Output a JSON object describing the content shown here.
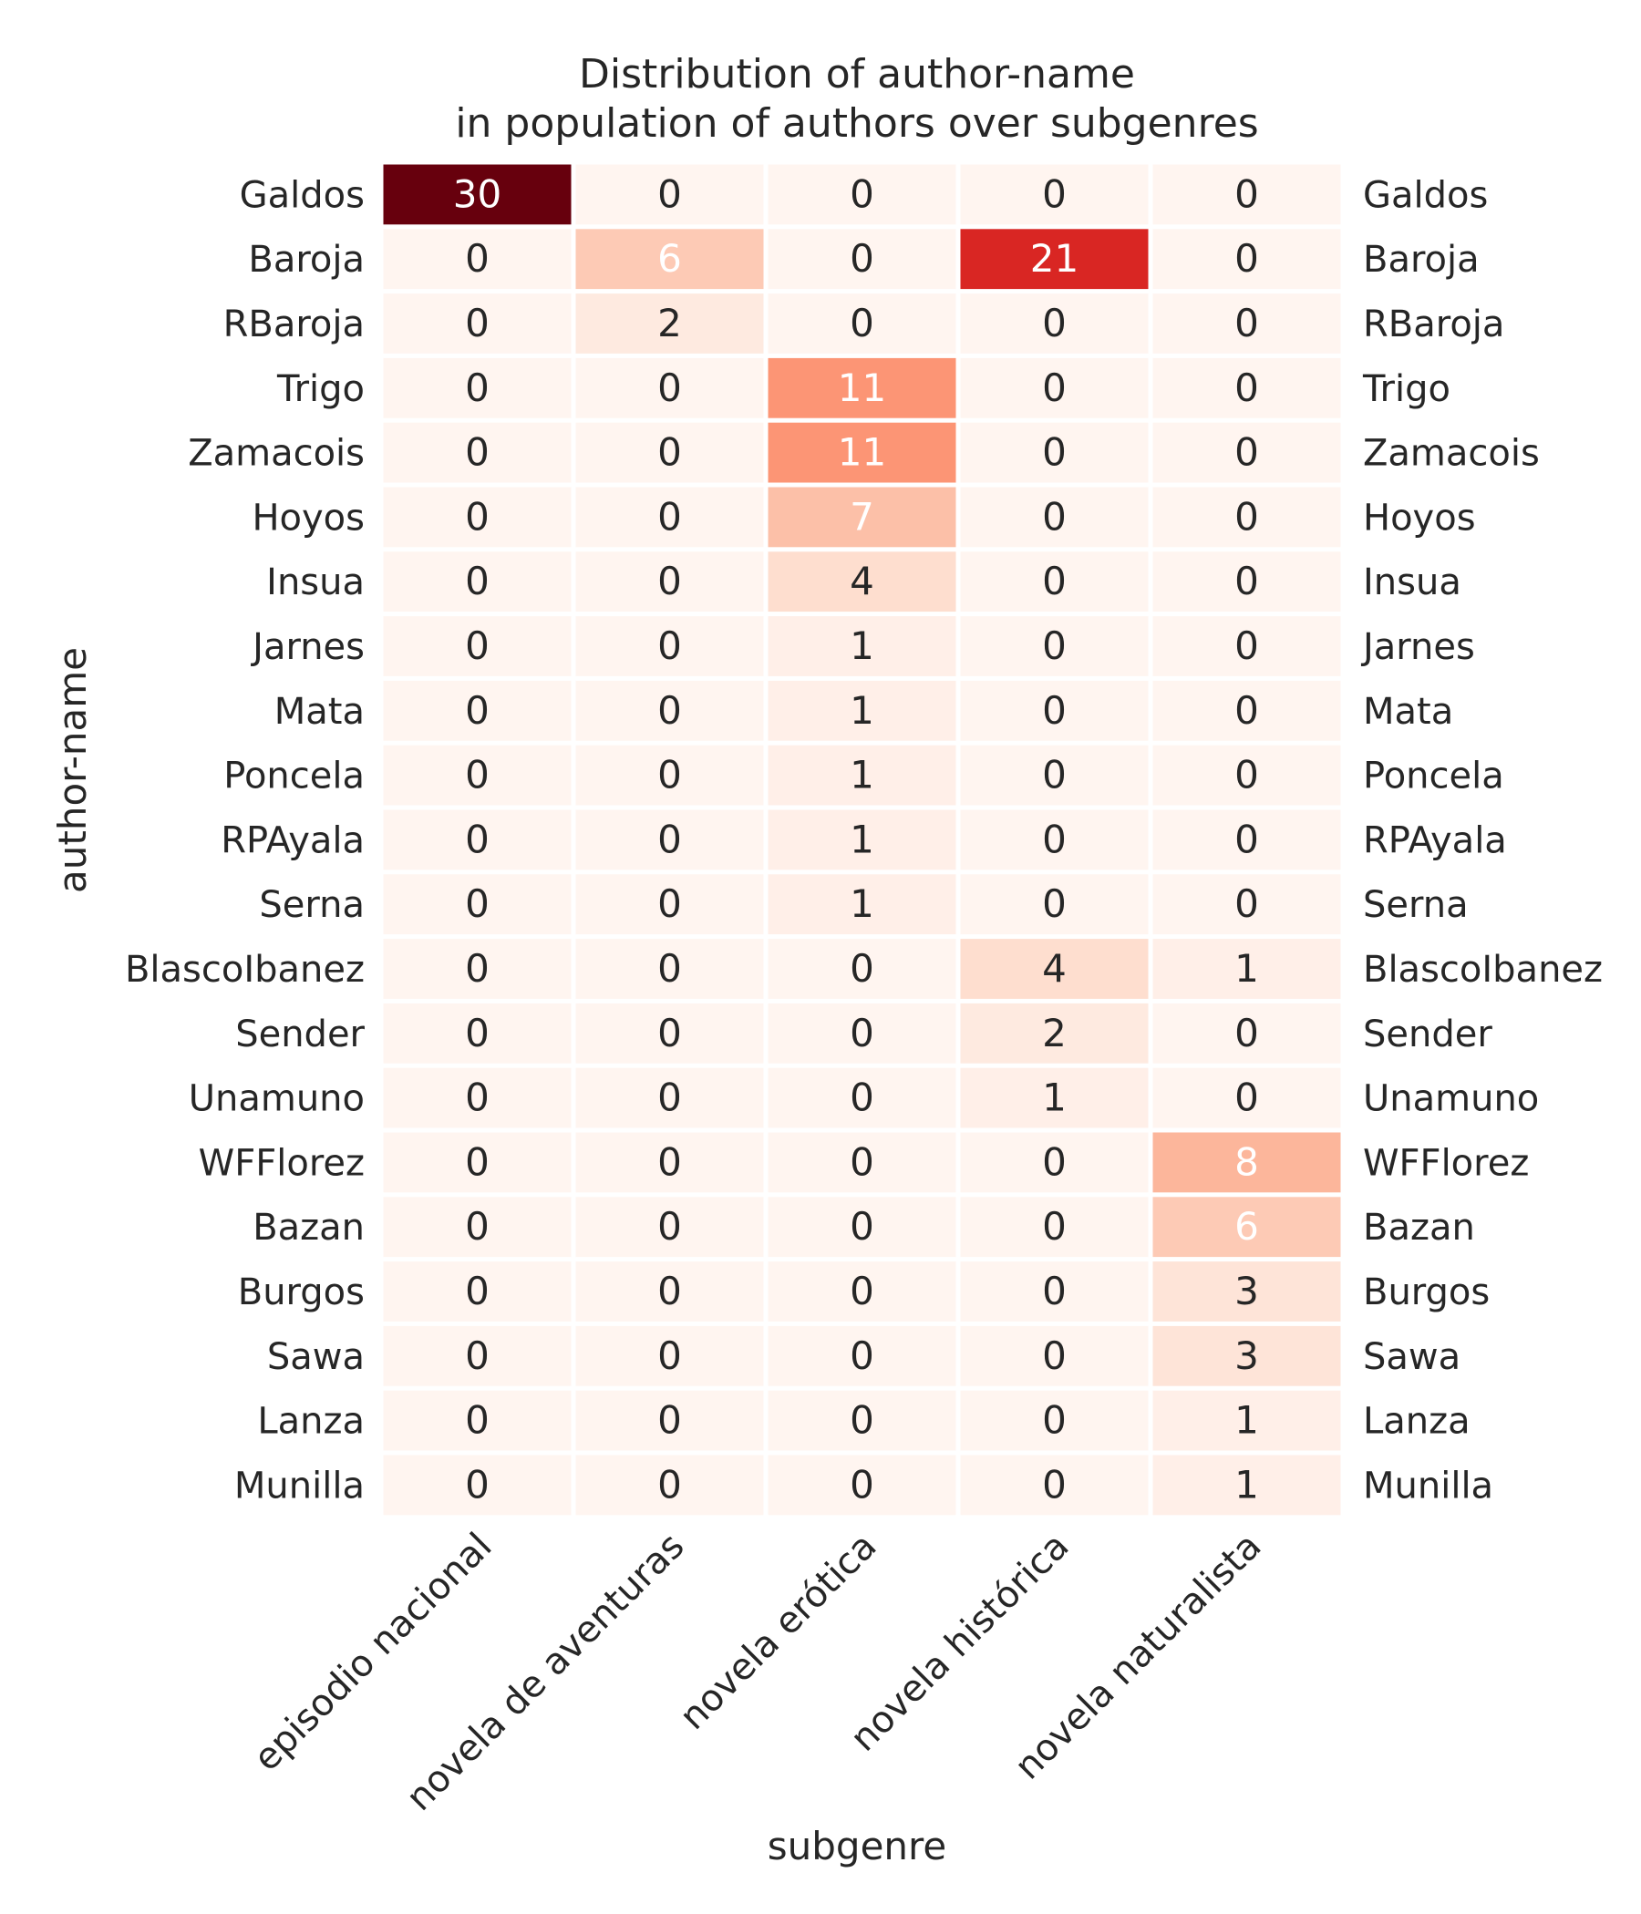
{
  "chart_data": {
    "type": "heatmap",
    "title": [
      "Distribution of author-name",
      "in population of authors over subgenres"
    ],
    "xlabel": "subgenre",
    "ylabel": "author-name",
    "colormap": "Reds",
    "color_range": [
      0,
      30
    ],
    "x": [
      "episodio nacional",
      "novela de aventuras",
      "novela erótica",
      "novela histórica",
      "novela naturalista"
    ],
    "y": [
      "Galdos",
      "Baroja",
      "RBaroja",
      "Trigo",
      "Zamacois",
      "Hoyos",
      "Insua",
      "Jarnes",
      "Mata",
      "Poncela",
      "RPAyala",
      "Serna",
      "BlascoIbanez",
      "Sender",
      "Unamuno",
      "WFFlorez",
      "Bazan",
      "Burgos",
      "Sawa",
      "Lanza",
      "Munilla"
    ],
    "values": [
      [
        30,
        0,
        0,
        0,
        0
      ],
      [
        0,
        6,
        0,
        21,
        0
      ],
      [
        0,
        2,
        0,
        0,
        0
      ],
      [
        0,
        0,
        11,
        0,
        0
      ],
      [
        0,
        0,
        11,
        0,
        0
      ],
      [
        0,
        0,
        7,
        0,
        0
      ],
      [
        0,
        0,
        4,
        0,
        0
      ],
      [
        0,
        0,
        1,
        0,
        0
      ],
      [
        0,
        0,
        1,
        0,
        0
      ],
      [
        0,
        0,
        1,
        0,
        0
      ],
      [
        0,
        0,
        1,
        0,
        0
      ],
      [
        0,
        0,
        1,
        0,
        0
      ],
      [
        0,
        0,
        0,
        4,
        1
      ],
      [
        0,
        0,
        0,
        2,
        0
      ],
      [
        0,
        0,
        0,
        1,
        0
      ],
      [
        0,
        0,
        0,
        0,
        8
      ],
      [
        0,
        0,
        0,
        0,
        6
      ],
      [
        0,
        0,
        0,
        0,
        3
      ],
      [
        0,
        0,
        0,
        0,
        3
      ],
      [
        0,
        0,
        0,
        0,
        1
      ],
      [
        0,
        0,
        0,
        0,
        1
      ]
    ]
  }
}
